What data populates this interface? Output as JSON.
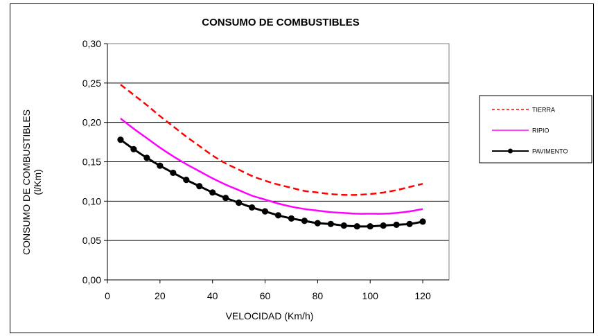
{
  "chart_data": {
    "type": "line",
    "title": "CONSUMO DE COMBUSTIBLES",
    "xlabel": "VELOCIDAD (Km/h)",
    "ylabel": [
      "CONSUMO DE COMBUSTIBLES",
      "(l/Km)"
    ],
    "xlim": [
      0,
      130
    ],
    "ylim": [
      0,
      0.3
    ],
    "x_ticks": [
      "0",
      "20",
      "40",
      "60",
      "80",
      "100",
      "120"
    ],
    "y_ticks": [
      "0,00",
      "0,05",
      "0,10",
      "0,15",
      "0,20",
      "0,25",
      "0,30"
    ],
    "grid": "horizontal",
    "legend_position": "right",
    "series": [
      {
        "name": "TIERRA",
        "color": "#ff0000",
        "style": "dashed",
        "x": [
          5,
          10,
          15,
          20,
          25,
          30,
          35,
          40,
          45,
          50,
          55,
          60,
          65,
          70,
          75,
          80,
          85,
          90,
          95,
          100,
          105,
          110,
          115,
          120
        ],
        "values": [
          0.248,
          0.235,
          0.222,
          0.208,
          0.195,
          0.182,
          0.17,
          0.158,
          0.148,
          0.14,
          0.132,
          0.126,
          0.121,
          0.117,
          0.113,
          0.111,
          0.109,
          0.108,
          0.108,
          0.109,
          0.111,
          0.114,
          0.118,
          0.122
        ]
      },
      {
        "name": "RIPIO",
        "color": "#ff00ff",
        "style": "solid",
        "x": [
          5,
          10,
          15,
          20,
          25,
          30,
          35,
          40,
          45,
          50,
          55,
          60,
          65,
          70,
          75,
          80,
          85,
          90,
          95,
          100,
          105,
          110,
          115,
          120
        ],
        "values": [
          0.205,
          0.192,
          0.18,
          0.168,
          0.157,
          0.147,
          0.138,
          0.129,
          0.121,
          0.114,
          0.107,
          0.102,
          0.097,
          0.093,
          0.09,
          0.088,
          0.086,
          0.085,
          0.084,
          0.084,
          0.084,
          0.085,
          0.087,
          0.09
        ]
      },
      {
        "name": "PAVIMENTO",
        "color": "#000000",
        "style": "solid-markers",
        "x": [
          5,
          10,
          15,
          20,
          25,
          30,
          35,
          40,
          45,
          50,
          55,
          60,
          65,
          70,
          75,
          80,
          85,
          90,
          95,
          100,
          105,
          110,
          115,
          120
        ],
        "values": [
          0.178,
          0.166,
          0.155,
          0.145,
          0.136,
          0.127,
          0.119,
          0.111,
          0.104,
          0.098,
          0.092,
          0.087,
          0.082,
          0.078,
          0.075,
          0.072,
          0.071,
          0.069,
          0.068,
          0.068,
          0.069,
          0.07,
          0.071,
          0.074
        ]
      }
    ]
  }
}
